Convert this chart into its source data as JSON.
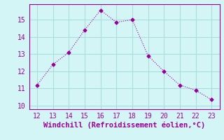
{
  "x": [
    12,
    13,
    14,
    15,
    16,
    17,
    18,
    19,
    20,
    21,
    22,
    23
  ],
  "y": [
    11.2,
    12.4,
    13.1,
    14.4,
    15.55,
    14.85,
    15.0,
    12.9,
    12.0,
    11.2,
    10.9,
    10.35
  ],
  "line_color": "#990099",
  "marker": "D",
  "marker_size": 2.5,
  "xlabel": "Windchill (Refroidissement éolien,°C)",
  "xlim": [
    11.5,
    23.5
  ],
  "ylim": [
    9.8,
    15.9
  ],
  "xticks": [
    12,
    13,
    14,
    15,
    16,
    17,
    18,
    19,
    20,
    21,
    22,
    23
  ],
  "yticks": [
    10,
    11,
    12,
    13,
    14,
    15
  ],
  "bg_color": "#d4f5f5",
  "grid_color": "#aadddd",
  "spine_color": "#990099",
  "tick_label_size": 7,
  "xlabel_size": 7.5
}
